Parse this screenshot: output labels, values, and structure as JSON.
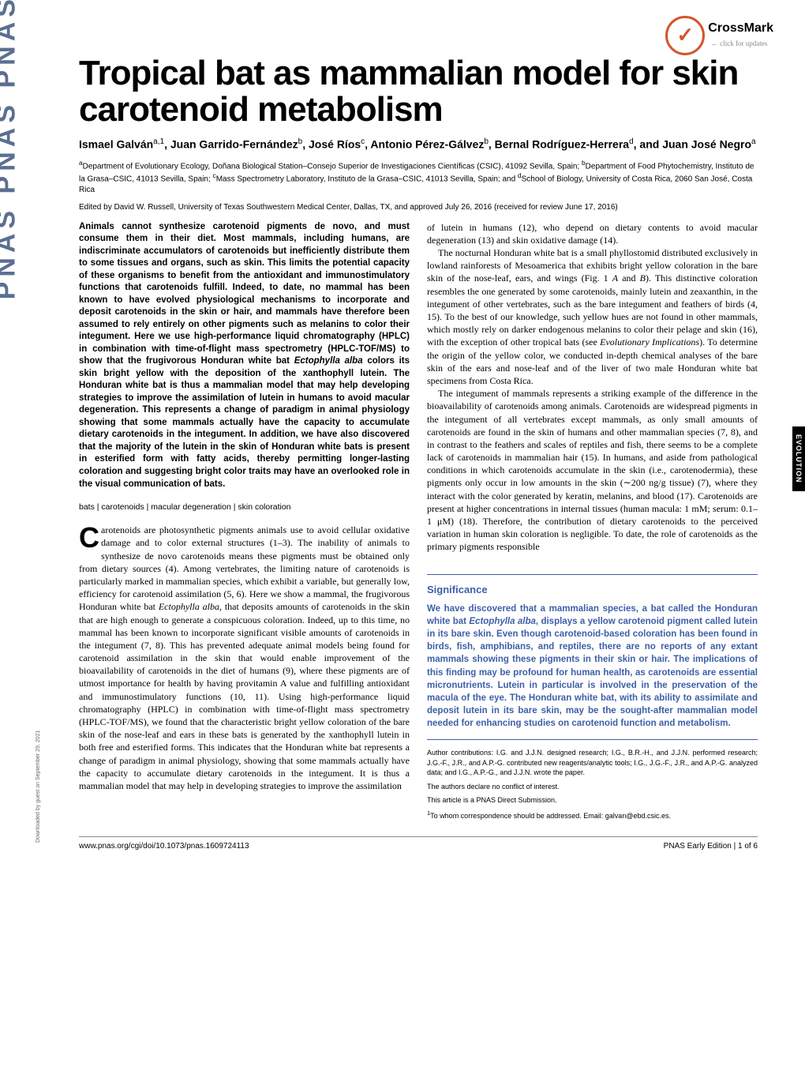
{
  "crossmark": {
    "label": "CrossMark",
    "sub": "← click for updates"
  },
  "title": "Tropical bat as mammalian model for skin carotenoid metabolism",
  "authors_html": "Ismael Galván<sup>a,1</sup>, Juan Garrido-Fernández<sup>b</sup>, José Ríos<sup>c</sup>, Antonio Pérez-Gálvez<sup>b</sup>, Bernal Rodríguez-Herrera<sup>d</sup>, and Juan José Negro<sup>a</sup>",
  "affiliations": "<sup>a</sup>Department of Evolutionary Ecology, Doñana Biological Station–Consejo Superior de Investigaciones Científicas (CSIC), 41092 Sevilla, Spain; <sup>b</sup>Department of Food Phytochemistry, Instituto de la Grasa–CSIC, 41013 Sevilla, Spain; <sup>c</sup>Mass Spectrometry Laboratory, Instituto de la Grasa–CSIC, 41013 Sevilla, Spain; and <sup>d</sup>School of Biology, University of Costa Rica, 2060 San José, Costa Rica",
  "editor_line": "Edited by David W. Russell, University of Texas Southwestern Medical Center, Dallas, TX, and approved July 26, 2016 (received for review June 17, 2016)",
  "abstract": "Animals cannot synthesize carotenoid pigments de novo, and must consume them in their diet. Most mammals, including humans, are indiscriminate accumulators of carotenoids but inefficiently distribute them to some tissues and organs, such as skin. This limits the potential capacity of these organisms to benefit from the antioxidant and immunostimulatory functions that carotenoids fulfill. Indeed, to date, no mammal has been known to have evolved physiological mechanisms to incorporate and deposit carotenoids in the skin or hair, and mammals have therefore been assumed to rely entirely on other pigments such as melanins to color their integument. Here we use high-performance liquid chromatography (HPLC) in combination with time-of-flight mass spectrometry (HPLC-TOF/MS) to show that the frugivorous Honduran white bat <i>Ectophylla alba</i> colors its skin bright yellow with the deposition of the xanthophyll lutein. The Honduran white bat is thus a mammalian model that may help developing strategies to improve the assimilation of lutein in humans to avoid macular degeneration. This represents a change of paradigm in animal physiology showing that some mammals actually have the capacity to accumulate dietary carotenoids in the integument. In addition, we have also discovered that the majority of the lutein in the skin of Honduran white bats is present in esterified form with fatty acids, thereby permitting longer-lasting coloration and suggesting bright color traits may have an overlooked role in the visual communication of bats.",
  "keywords": "bats | carotenoids | macular degeneration | skin coloration",
  "body_left": "arotenoids are photosynthetic pigments animals use to avoid cellular oxidative damage and to color external structures (1–3). The inability of animals to synthesize de novo carotenoids means these pigments must be obtained only from dietary sources (4). Among vertebrates, the limiting nature of carotenoids is particularly marked in mammalian species, which exhibit a variable, but generally low, efficiency for carotenoid assimilation (5, 6). Here we show a mammal, the frugivorous Honduran white bat <i>Ectophylla alba</i>, that deposits amounts of carotenoids in the skin that are high enough to generate a conspicuous coloration. Indeed, up to this time, no mammal has been known to incorporate significant visible amounts of carotenoids in the integument (7, 8). This has prevented adequate animal models being found for carotenoid assimilation in the skin that would enable improvement of the bioavailability of carotenoids in the diet of humans (9), where these pigments are of utmost importance for health by having provitamin A value and fulfilling antioxidant and immunostimulatory functions (10, 11). Using high-performance liquid chromatography (HPLC) in combination with time-of-flight mass spectrometry (HPLC-TOF/MS), we found that the characteristic bright yellow coloration of the bare skin of the nose-leaf and ears in these bats is generated by the xanthophyll lutein in both free and esterified forms. This indicates that the Honduran white bat represents a change of paradigm in animal physiology, showing that some mammals actually have the capacity to accumulate dietary carotenoids in the integument. It is thus a mammalian model that may help in developing strategies to improve the assimilation",
  "body_right_p1": "of lutein in humans (12), who depend on dietary contents to avoid macular degeneration (13) and skin oxidative damage (14).",
  "body_right_p2": "The nocturnal Honduran white bat is a small phyllostomid distributed exclusively in lowland rainforests of Mesoamerica that exhibits bright yellow coloration in the bare skin of the nose-leaf, ears, and wings (Fig. 1 <i>A</i> and <i>B</i>). This distinctive coloration resembles the one generated by some carotenoids, mainly lutein and zeaxanthin, in the integument of other vertebrates, such as the bare integument and feathers of birds (4, 15). To the best of our knowledge, such yellow hues are not found in other mammals, which mostly rely on darker endogenous melanins to color their pelage and skin (16), with the exception of other tropical bats (see <i>Evolutionary Implications</i>). To determine the origin of the yellow color, we conducted in-depth chemical analyses of the bare skin of the ears and nose-leaf and of the liver of two male Honduran white bat specimens from Costa Rica.",
  "body_right_p3": "The integument of mammals represents a striking example of the difference in the bioavailability of carotenoids among animals. Carotenoids are widespread pigments in the integument of all vertebrates except mammals, as only small amounts of carotenoids are found in the skin of humans and other mammalian species (7, 8), and in contrast to the feathers and scales of reptiles and fish, there seems to be a complete lack of carotenoids in mammalian hair (15). In humans, and aside from pathological conditions in which carotenoids accumulate in the skin (i.e., carotenodermia), these pigments only occur in low amounts in the skin (∼200 ng/g tissue) (7), where they interact with the color generated by keratin, melanins, and blood (17). Carotenoids are present at higher concentrations in internal tissues (human macula: 1 mM; serum: 0.1–1 μM) (18). Therefore, the contribution of dietary carotenoids to the perceived variation in human skin coloration is negligible. To date, the role of carotenoids as the primary pigments responsible",
  "significance": {
    "heading": "Significance",
    "body": "We have discovered that a mammalian species, a bat called the Honduran white bat <i>Ectophylla alba</i>, displays a yellow carotenoid pigment called lutein in its bare skin. Even though carotenoid-based coloration has been found in birds, fish, amphibians, and reptiles, there are no reports of any extant mammals showing these pigments in their skin or hair. The implications of this finding may be profound for human health, as carotenoids are essential micronutrients. Lutein in particular is involved in the preservation of the macula of the eye. The Honduran white bat, with its ability to assimilate and deposit lutein in its bare skin, may be the sought-after mammalian model needed for enhancing studies on carotenoid function and metabolism."
  },
  "footnotes": {
    "contrib": "Author contributions: I.G. and J.J.N. designed research; I.G., B.R.-H., and J.J.N. performed research; J.G.-F., J.R., and A.P.-G. contributed new reagents/analytic tools; I.G., J.G.-F., J.R., and A.P.-G. analyzed data; and I.G., A.P.-G., and J.J.N. wrote the paper.",
    "conflict": "The authors declare no conflict of interest.",
    "submission": "This article is a PNAS Direct Submission.",
    "corr": "<sup>1</sup>To whom correspondence should be addressed. Email: galvan@ebd.csic.es."
  },
  "footer": {
    "doi": "www.pnas.org/cgi/doi/10.1073/pnas.1609724113",
    "page": "PNAS Early Edition | 1 of 6"
  },
  "side": {
    "pnas": "PNAS PNAS PNAS",
    "tab": "EVOLUTION",
    "download": "Downloaded by guest on September 29, 2021"
  },
  "colors": {
    "background": "#ffffff",
    "text": "#000000",
    "sig_blue": "#3d5fa8",
    "crossmark": "#d4552d",
    "side_pnas": "#5b6f91"
  }
}
